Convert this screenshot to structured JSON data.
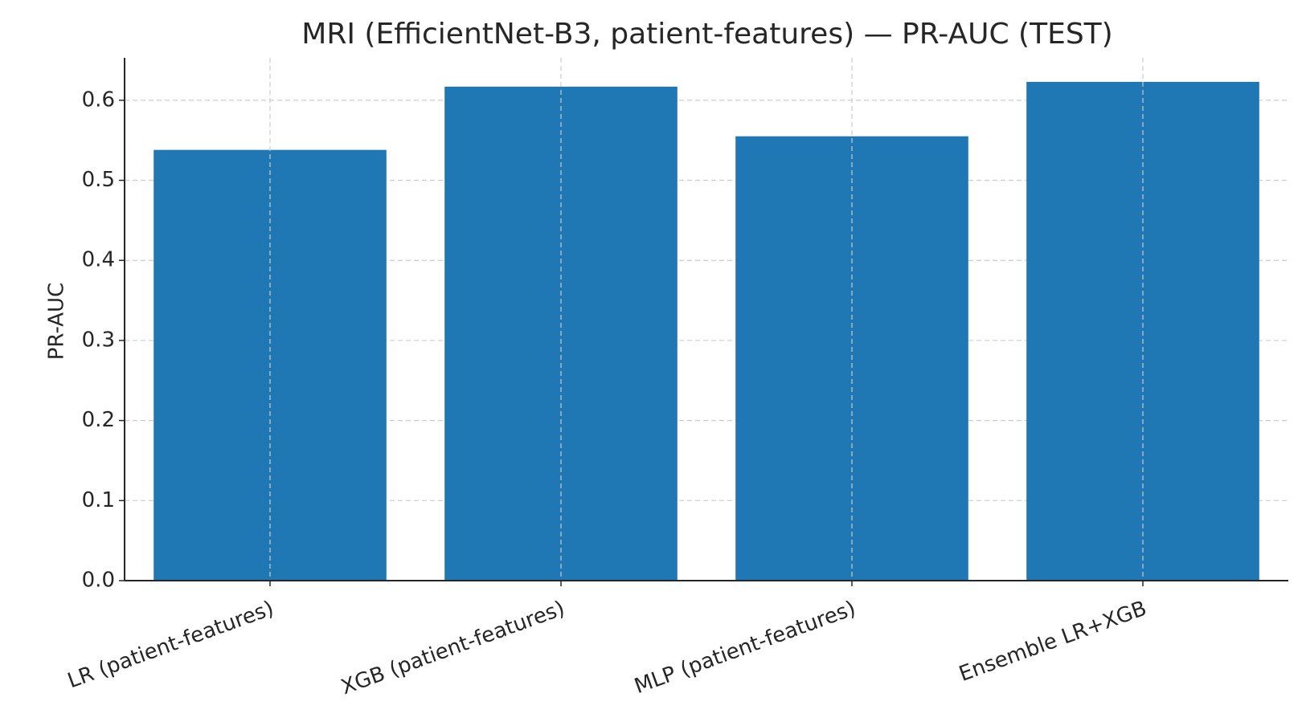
{
  "chart_data": {
    "type": "bar",
    "title": "MRI (EfficientNet-B3, patient-features) — PR-AUC (TEST)",
    "xlabel": "",
    "ylabel": "PR-AUC",
    "categories": [
      "LR (patient-features)",
      "XGB (patient-features)",
      "MLP (patient-features)",
      "Ensemble LR+XGB"
    ],
    "values": [
      0.538,
      0.617,
      0.555,
      0.623
    ],
    "ylim": [
      0,
      0.653
    ],
    "yticks": [
      "0.0",
      "0.1",
      "0.2",
      "0.3",
      "0.4",
      "0.5",
      "0.6"
    ],
    "grid": true,
    "bar_color": "#1f77b4",
    "grid_color": "#cccccc",
    "axis_color": "#262626",
    "text_color": "#262626"
  }
}
